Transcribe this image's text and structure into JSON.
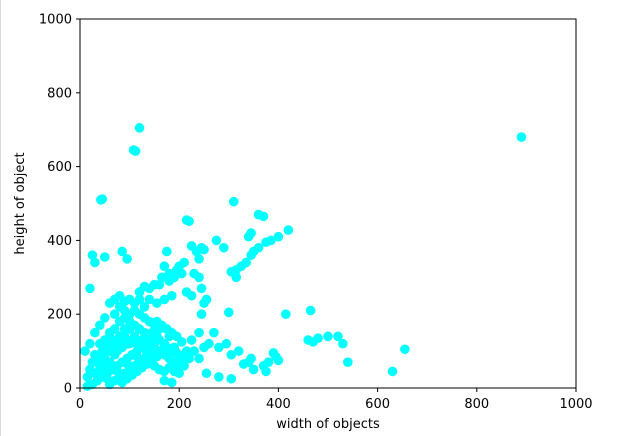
{
  "chart_data": {
    "type": "scatter",
    "xlabel": "width of objects",
    "ylabel": "height of object",
    "xlim": [
      0,
      1000
    ],
    "ylim": [
      0,
      1000
    ],
    "xticks": [
      0,
      200,
      400,
      600,
      800,
      1000
    ],
    "yticks": [
      0,
      200,
      400,
      600,
      800,
      1000
    ],
    "grid": false,
    "color": "#00ffff",
    "series": [
      {
        "points": [
          [
            120,
            705
          ],
          [
            108,
            645
          ],
          [
            112,
            642
          ],
          [
            890,
            680
          ],
          [
            42,
            510
          ],
          [
            45,
            512
          ],
          [
            310,
            505
          ],
          [
            370,
            465
          ],
          [
            360,
            470
          ],
          [
            215,
            455
          ],
          [
            220,
            452
          ],
          [
            420,
            428
          ],
          [
            400,
            410
          ],
          [
            385,
            400
          ],
          [
            375,
            395
          ],
          [
            360,
            380
          ],
          [
            350,
            370
          ],
          [
            345,
            360
          ],
          [
            335,
            340
          ],
          [
            325,
            330
          ],
          [
            315,
            320
          ],
          [
            305,
            315
          ],
          [
            315,
            300
          ],
          [
            290,
            380
          ],
          [
            275,
            400
          ],
          [
            245,
            380
          ],
          [
            235,
            370
          ],
          [
            225,
            385
          ],
          [
            250,
            375
          ],
          [
            240,
            350
          ],
          [
            210,
            340
          ],
          [
            200,
            330
          ],
          [
            195,
            320
          ],
          [
            205,
            310
          ],
          [
            190,
            300
          ],
          [
            180,
            290
          ],
          [
            175,
            300
          ],
          [
            170,
            330
          ],
          [
            175,
            370
          ],
          [
            180,
            310
          ],
          [
            165,
            300
          ],
          [
            160,
            280
          ],
          [
            150,
            280
          ],
          [
            140,
            270
          ],
          [
            130,
            275
          ],
          [
            120,
            260
          ],
          [
            345,
            420
          ],
          [
            340,
            410
          ],
          [
            230,
            310
          ],
          [
            240,
            300
          ],
          [
            245,
            270
          ],
          [
            255,
            240
          ],
          [
            215,
            260
          ],
          [
            225,
            250
          ],
          [
            185,
            250
          ],
          [
            170,
            240
          ],
          [
            155,
            230
          ],
          [
            140,
            240
          ],
          [
            20,
            270
          ],
          [
            25,
            360
          ],
          [
            30,
            340
          ],
          [
            50,
            355
          ],
          [
            85,
            370
          ],
          [
            95,
            350
          ],
          [
            60,
            230
          ],
          [
            80,
            220
          ],
          [
            110,
            230
          ],
          [
            90,
            235
          ],
          [
            415,
            200
          ],
          [
            465,
            210
          ],
          [
            480,
            135
          ],
          [
            500,
            140
          ],
          [
            520,
            140
          ],
          [
            530,
            120
          ],
          [
            540,
            70
          ],
          [
            460,
            130
          ],
          [
            470,
            125
          ],
          [
            655,
            105
          ],
          [
            630,
            45
          ],
          [
            390,
            95
          ],
          [
            395,
            85
          ],
          [
            400,
            75
          ],
          [
            380,
            70
          ],
          [
            370,
            60
          ],
          [
            375,
            45
          ],
          [
            350,
            50
          ],
          [
            340,
            70
          ],
          [
            345,
            80
          ],
          [
            330,
            65
          ],
          [
            320,
            100
          ],
          [
            305,
            90
          ],
          [
            300,
            205
          ],
          [
            295,
            120
          ],
          [
            280,
            110
          ],
          [
            270,
            150
          ],
          [
            260,
            120
          ],
          [
            250,
            110
          ],
          [
            240,
            80
          ],
          [
            255,
            40
          ],
          [
            280,
            30
          ],
          [
            305,
            25
          ],
          [
            185,
            15
          ],
          [
            170,
            20
          ],
          [
            230,
            100
          ],
          [
            245,
            200
          ],
          [
            250,
            230
          ],
          [
            240,
            150
          ],
          [
            225,
            130
          ],
          [
            205,
            125
          ],
          [
            215,
            100
          ],
          [
            200,
            90
          ],
          [
            60,
            150
          ],
          [
            70,
            160
          ],
          [
            80,
            180
          ],
          [
            90,
            190
          ],
          [
            100,
            200
          ],
          [
            110,
            210
          ],
          [
            120,
            200
          ],
          [
            130,
            190
          ],
          [
            140,
            180
          ],
          [
            150,
            170
          ],
          [
            160,
            160
          ],
          [
            155,
            140
          ],
          [
            145,
            130
          ],
          [
            135,
            120
          ],
          [
            125,
            110
          ],
          [
            115,
            100
          ],
          [
            105,
            90
          ],
          [
            95,
            80
          ],
          [
            85,
            70
          ],
          [
            75,
            60
          ],
          [
            65,
            50
          ],
          [
            55,
            40
          ],
          [
            45,
            30
          ],
          [
            35,
            20
          ],
          [
            25,
            10
          ],
          [
            15,
            5
          ],
          [
            30,
            40
          ],
          [
            40,
            60
          ],
          [
            50,
            80
          ],
          [
            60,
            100
          ],
          [
            70,
            120
          ],
          [
            80,
            140
          ],
          [
            90,
            160
          ],
          [
            100,
            120
          ],
          [
            110,
            140
          ],
          [
            120,
            160
          ],
          [
            130,
            150
          ],
          [
            140,
            130
          ],
          [
            150,
            110
          ],
          [
            160,
            100
          ],
          [
            170,
            90
          ],
          [
            180,
            80
          ],
          [
            190,
            70
          ],
          [
            200,
            60
          ],
          [
            170,
            120
          ],
          [
            180,
            140
          ],
          [
            160,
            130
          ],
          [
            150,
            90
          ],
          [
            140,
            100
          ],
          [
            130,
            80
          ],
          [
            120,
            70
          ],
          [
            110,
            60
          ],
          [
            100,
            50
          ],
          [
            90,
            40
          ],
          [
            80,
            30
          ],
          [
            70,
            20
          ],
          [
            60,
            10
          ],
          [
            40,
            120
          ],
          [
            50,
            130
          ],
          [
            60,
            140
          ],
          [
            45,
            100
          ],
          [
            55,
            110
          ],
          [
            65,
            130
          ],
          [
            75,
            100
          ],
          [
            85,
            110
          ],
          [
            95,
            120
          ],
          [
            105,
            130
          ],
          [
            115,
            120
          ],
          [
            125,
            130
          ],
          [
            135,
            140
          ],
          [
            145,
            150
          ],
          [
            155,
            180
          ],
          [
            165,
            170
          ],
          [
            175,
            160
          ],
          [
            185,
            150
          ],
          [
            195,
            140
          ],
          [
            190,
            110
          ],
          [
            185,
            100
          ],
          [
            175,
            110
          ],
          [
            165,
            95
          ],
          [
            155,
            85
          ],
          [
            145,
            75
          ],
          [
            135,
            65
          ],
          [
            125,
            55
          ],
          [
            115,
            45
          ],
          [
            105,
            35
          ],
          [
            95,
            25
          ],
          [
            85,
            15
          ],
          [
            35,
            80
          ],
          [
            30,
            90
          ],
          [
            25,
            70
          ],
          [
            20,
            50
          ],
          [
            15,
            30
          ],
          [
            10,
            100
          ],
          [
            20,
            120
          ],
          [
            30,
            150
          ],
          [
            40,
            170
          ],
          [
            50,
            190
          ],
          [
            70,
            200
          ],
          [
            90,
            210
          ],
          [
            100,
            180
          ],
          [
            110,
            170
          ],
          [
            100,
            160
          ],
          [
            90,
            140
          ],
          [
            80,
            120
          ],
          [
            70,
            90
          ],
          [
            60,
            70
          ],
          [
            50,
            60
          ],
          [
            40,
            50
          ],
          [
            35,
            35
          ],
          [
            55,
            25
          ],
          [
            75,
            45
          ],
          [
            95,
            65
          ],
          [
            115,
            85
          ],
          [
            135,
            95
          ],
          [
            150,
            60
          ],
          [
            160,
            50
          ],
          [
            170,
            45
          ],
          [
            180,
            55
          ],
          [
            190,
            45
          ],
          [
            200,
            40
          ],
          [
            210,
            60
          ],
          [
            220,
            80
          ],
          [
            205,
            80
          ],
          [
            195,
            95
          ],
          [
            130,
            220
          ],
          [
            120,
            240
          ],
          [
            100,
            240
          ],
          [
            80,
            250
          ],
          [
            70,
            240
          ]
        ]
      }
    ]
  }
}
